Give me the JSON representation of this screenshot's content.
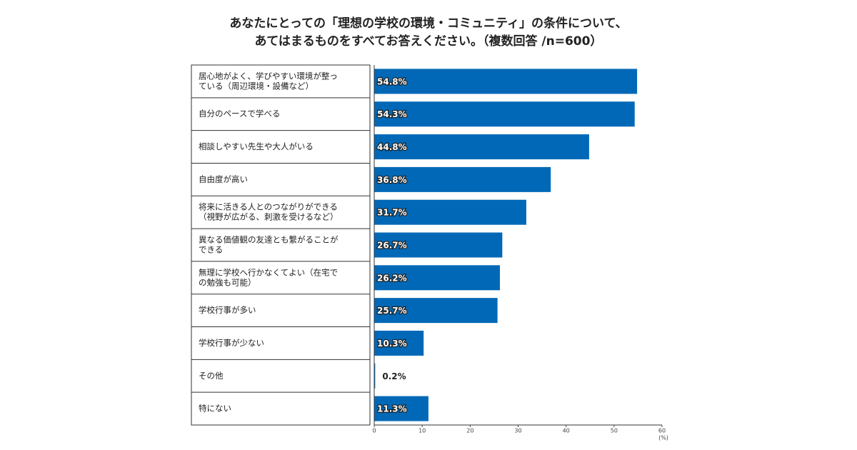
{
  "chart_data": {
    "type": "barh",
    "title": [
      "あなたにとっての「理想の学校の環境・コミュニティ」の条件について、",
      "あてはまるものをすべてお答えください。（複数回答 /n=600）"
    ],
    "categories": [
      [
        "居心地がよく、学びやすい環境が整っ",
        "ている（周辺環境・設備など）"
      ],
      [
        "自分のペースで学べる"
      ],
      [
        "相談しやすい先生や大人がいる"
      ],
      [
        "自由度が高い"
      ],
      [
        "将来に活きる人とのつながりができる",
        "（視野が広がる、刺激を受けるなど）"
      ],
      [
        "異なる価値観の友達とも繋がることが",
        "できる"
      ],
      [
        "無理に学校へ行かなくてよい（在宅で",
        "の勉強も可能）"
      ],
      [
        "学校行事が多い"
      ],
      [
        "学校行事が少ない"
      ],
      [
        "その他"
      ],
      [
        "特にない"
      ]
    ],
    "values": [
      54.8,
      54.3,
      44.8,
      36.8,
      31.7,
      26.7,
      26.2,
      25.7,
      10.3,
      0.2,
      11.3
    ],
    "value_labels": [
      "54.8%",
      "54.3%",
      "44.8%",
      "36.8%",
      "31.7%",
      "26.7%",
      "26.2%",
      "25.7%",
      "10.3%",
      "0.2%",
      "11.3%"
    ],
    "color": "#0068b7",
    "xlim": [
      0,
      60
    ],
    "xticks": [
      0,
      10,
      20,
      30,
      40,
      50,
      60
    ],
    "x_unit": "(%)"
  }
}
